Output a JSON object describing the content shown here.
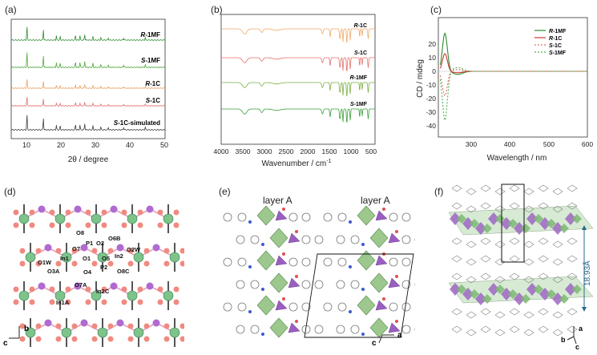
{
  "panels": {
    "a": {
      "letter": "(a)",
      "xlabel": "2θ / degree",
      "ticks": [
        "10",
        "20",
        "30",
        "40",
        "50"
      ],
      "traces": [
        {
          "label_pre": "R",
          "label_post": "-1MF",
          "color": "#2e8b2e"
        },
        {
          "label_pre": "S",
          "label_post": "-1MF",
          "color": "#4fa83a"
        },
        {
          "label_pre": "R",
          "label_post": "-1C",
          "color": "#e8a060"
        },
        {
          "label_pre": "S",
          "label_post": "-1C",
          "color": "#e0706c"
        },
        {
          "label_pre": "S",
          "label_post": "-1C-simulated",
          "color": "#404040"
        }
      ]
    },
    "b": {
      "letter": "(b)",
      "xlabel": "Wavenumber / cm",
      "xlabel_sup": "-1",
      "ticks": [
        "4000",
        "3500",
        "3000",
        "2500",
        "2000",
        "1500",
        "1000",
        "500"
      ],
      "traces": [
        {
          "label_pre": "R",
          "label_post": "-1C",
          "color": "#f0a868"
        },
        {
          "label_pre": "S",
          "label_post": "-1C",
          "color": "#e6706a"
        },
        {
          "label_pre": "R",
          "label_post": "-1MF",
          "color": "#7ab040"
        },
        {
          "label_pre": "S",
          "label_post": "-1MF",
          "color": "#3aa03a"
        }
      ]
    },
    "c": {
      "letter": "(c)",
      "xlabel": "Wavelength / nm",
      "ylabel": "CD / mdeg",
      "xticks": [
        "300",
        "400",
        "500",
        "600"
      ],
      "yticks": [
        "20",
        "10",
        "0",
        "-10",
        "-20",
        "-30",
        "-40"
      ],
      "legend": [
        {
          "label_pre": "R",
          "label_post": "-1MF",
          "color": "#2e8b2e",
          "dashed": false
        },
        {
          "label_pre": "R",
          "label_post": "-1C",
          "color": "#c83a30",
          "dashed": false
        },
        {
          "label_pre": "S",
          "label_post": "-1C",
          "color": "#e07060",
          "dashed": true
        },
        {
          "label_pre": "S",
          "label_post": "-1MF",
          "color": "#50b050",
          "dashed": true
        }
      ]
    },
    "d": {
      "letter": "(d)",
      "atoms": [
        "O8",
        "P1",
        "O2",
        "O6B",
        "O7",
        "O2W",
        "O1W",
        "In1",
        "O1",
        "O5",
        "In2",
        "O3A",
        "O4",
        "P2",
        "O8C",
        "O7A",
        "In1A",
        "In2C"
      ],
      "axis_b": "b",
      "axis_c": "c"
    },
    "e": {
      "letter": "(e)",
      "layer_left": "layer A",
      "layer_right": "layer A",
      "axis_c": "c",
      "axis_a": "a"
    },
    "f": {
      "letter": "(f)",
      "distance": "18.93Å",
      "axis_a": "a",
      "axis_b": "b",
      "axis_c": "c"
    }
  }
}
